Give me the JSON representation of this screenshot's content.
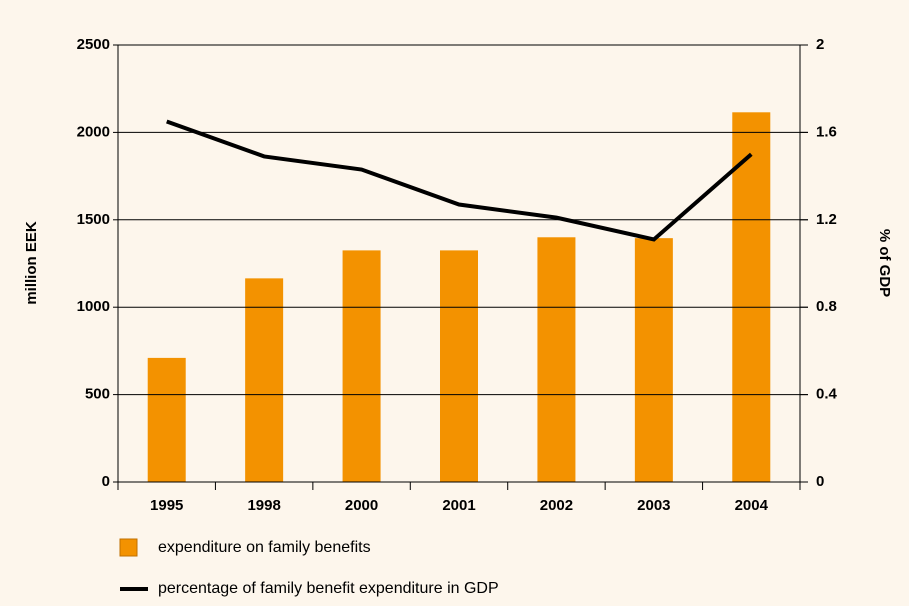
{
  "chart_data": {
    "type": "bar-line",
    "categories": [
      "1995",
      "1998",
      "2000",
      "2001",
      "2002",
      "2003",
      "2004"
    ],
    "series": [
      {
        "name": "expenditure on family benefits",
        "color": "#f39200",
        "type": "bar",
        "values": [
          710,
          1165,
          1325,
          1325,
          1400,
          1395,
          2115
        ]
      },
      {
        "name": "percentage of family benefit expenditure in GDP",
        "color": "#000000",
        "type": "line",
        "axis": "y2",
        "values": [
          1.65,
          1.49,
          1.43,
          1.27,
          1.21,
          1.11,
          1.5
        ]
      }
    ],
    "ylabel": "million EEK",
    "y2label": "% of GDP",
    "ylim": [
      0,
      2500
    ],
    "yticks": [
      0,
      500,
      1000,
      1500,
      2000,
      2500
    ],
    "y2lim": [
      0,
      2
    ],
    "y2ticks": [
      0,
      0.4,
      0.8,
      1.2,
      1.6,
      2
    ],
    "grid": true
  }
}
